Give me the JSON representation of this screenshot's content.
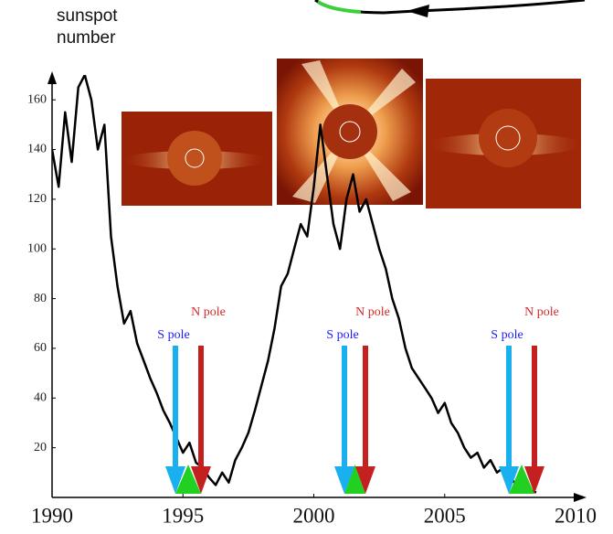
{
  "chart_data": {
    "type": "line",
    "y_label": "sunspot number",
    "xlim": [
      1990,
      2010
    ],
    "xticks": [
      1990,
      1995,
      2000,
      2005,
      2010
    ],
    "ylim": [
      0,
      170
    ],
    "yticks": [
      20,
      40,
      60,
      80,
      100,
      120,
      140,
      160
    ],
    "x": [
      1990,
      1990.25,
      1990.5,
      1990.75,
      1991,
      1991.25,
      1991.5,
      1991.75,
      1992,
      1992.25,
      1992.5,
      1992.75,
      1993,
      1993.25,
      1993.5,
      1993.75,
      1994,
      1994.25,
      1994.5,
      1994.75,
      1995,
      1995.25,
      1995.5,
      1995.75,
      1996,
      1996.25,
      1996.5,
      1996.75,
      1997,
      1997.25,
      1997.5,
      1997.75,
      1998,
      1998.25,
      1998.5,
      1998.75,
      1999,
      1999.25,
      1999.5,
      1999.75,
      2000,
      2000.25,
      2000.5,
      2000.75,
      2001,
      2001.25,
      2001.5,
      2001.75,
      2002,
      2002.25,
      2002.5,
      2002.75,
      2003,
      2003.25,
      2003.5,
      2003.75,
      2004,
      2004.25,
      2004.5,
      2004.75,
      2005,
      2005.25,
      2005.5,
      2005.75,
      2006,
      2006.25,
      2006.5,
      2006.75,
      2007,
      2007.25,
      2007.5,
      2007.75,
      2008,
      2008.25,
      2008.5
    ],
    "series": [
      {
        "color": "#000000",
        "values": [
          140,
          125,
          155,
          135,
          165,
          170,
          160,
          140,
          150,
          105,
          85,
          70,
          75,
          62,
          55,
          48,
          42,
          35,
          30,
          24,
          18,
          22,
          14,
          12,
          8,
          5,
          10,
          6,
          15,
          20,
          26,
          35,
          45,
          55,
          68,
          85,
          90,
          100,
          110,
          105,
          125,
          150,
          130,
          110,
          100,
          120,
          130,
          115,
          120,
          110,
          100,
          92,
          80,
          72,
          60,
          52,
          48,
          44,
          40,
          34,
          38,
          30,
          26,
          20,
          16,
          18,
          12,
          15,
          10,
          12,
          8,
          5,
          4,
          3,
          2
        ]
      }
    ],
    "pole_labels": [
      "S pole",
      "N pole",
      "S pole",
      "N pole",
      "S pole",
      "N pole"
    ],
    "pole_colors": [
      "#1a1aff",
      "#d42a2a"
    ]
  }
}
